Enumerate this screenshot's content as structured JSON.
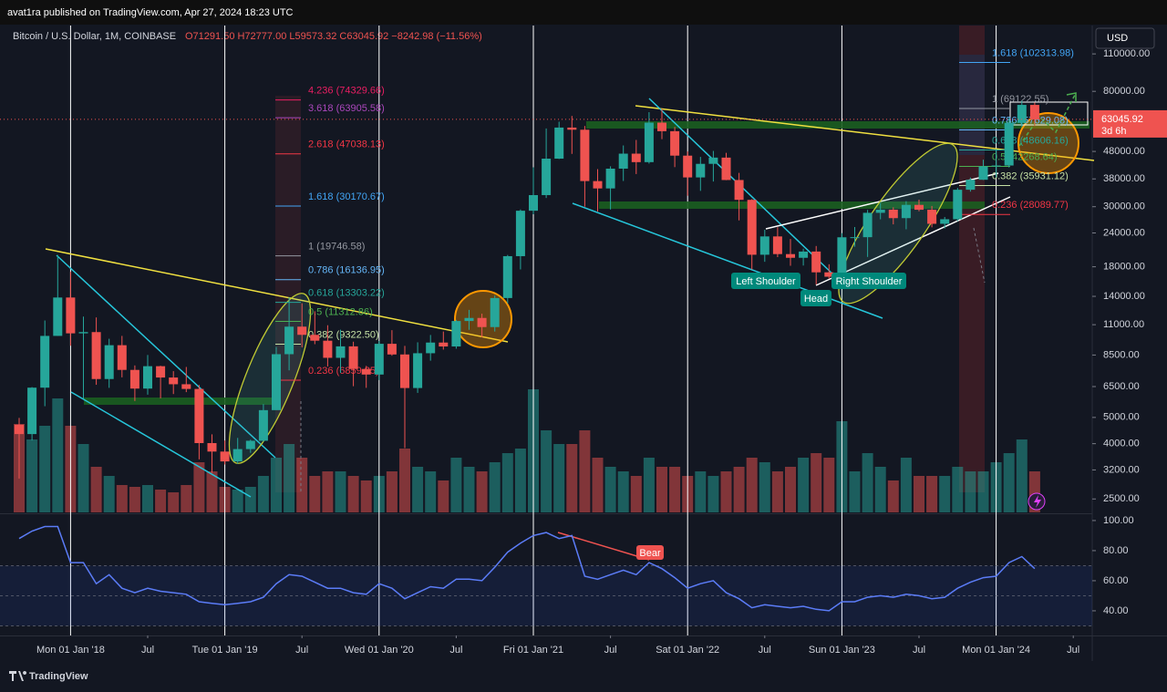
{
  "header": {
    "publisher": "avat1ra published on TradingView.com, Apr 27, 2024 18:23 UTC",
    "symbol": "Bitcoin / U.S. Dollar, 1M, COINBASE",
    "ohlc": "O71291.50 H72777.00 L59573.32 C63045.92 −8242.98 (−11.56%)",
    "currency": "USD"
  },
  "footer": "TradingView",
  "annotations": {
    "left_shoulder": "Left Shoulder",
    "head": "Head",
    "right_shoulder": "Right Shoulder",
    "bear": "Bear"
  },
  "chart_data": {
    "type": "candlestick",
    "log_scale": true,
    "up_color": "#26a69a",
    "down_color": "#ef5350",
    "x": [
      "2017-09",
      "2017-10",
      "2017-11",
      "2017-12",
      "2018-01",
      "2018-02",
      "2018-03",
      "2018-04",
      "2018-05",
      "2018-06",
      "2018-07",
      "2018-08",
      "2018-09",
      "2018-10",
      "2018-11",
      "2018-12",
      "2019-01",
      "2019-02",
      "2019-03",
      "2019-04",
      "2019-05",
      "2019-06",
      "2019-07",
      "2019-08",
      "2019-09",
      "2019-10",
      "2019-11",
      "2019-12",
      "2020-01",
      "2020-02",
      "2020-03",
      "2020-04",
      "2020-05",
      "2020-06",
      "2020-07",
      "2020-08",
      "2020-09",
      "2020-10",
      "2020-11",
      "2020-12",
      "2021-01",
      "2021-02",
      "2021-03",
      "2021-04",
      "2021-05",
      "2021-06",
      "2021-07",
      "2021-08",
      "2021-09",
      "2021-10",
      "2021-11",
      "2021-12",
      "2022-01",
      "2022-02",
      "2022-03",
      "2022-04",
      "2022-05",
      "2022-06",
      "2022-07",
      "2022-08",
      "2022-09",
      "2022-10",
      "2022-11",
      "2022-12",
      "2023-01",
      "2023-02",
      "2023-03",
      "2023-04",
      "2023-05",
      "2023-06",
      "2023-07",
      "2023-08",
      "2023-09",
      "2023-10",
      "2023-11",
      "2023-12",
      "2024-01",
      "2024-02",
      "2024-03",
      "2024-04"
    ],
    "open": [
      4700,
      4340,
      6440,
      10000,
      13860,
      10220,
      10330,
      6930,
      9240,
      7490,
      6390,
      7730,
      7020,
      6630,
      6370,
      4020,
      3740,
      3440,
      3820,
      4100,
      5320,
      8560,
      10820,
      10090,
      9600,
      8300,
      9150,
      7550,
      7200,
      9350,
      8540,
      6420,
      8630,
      9450,
      9140,
      11350,
      11650,
      10780,
      13800,
      19700,
      28990,
      33110,
      45140,
      58790,
      57720,
      37300,
      35040,
      41460,
      47100,
      43820,
      61320,
      57000,
      46310,
      38480,
      43190,
      45540,
      37640,
      31800,
      19940,
      23300,
      20050,
      19430,
      20490,
      17170,
      16540,
      23130,
      23150,
      28480,
      29250,
      27220,
      30470,
      29230,
      25940,
      26970,
      34650,
      37720,
      42280,
      42580,
      61170,
      71291.5
    ],
    "high": [
      4980,
      6470,
      11400,
      19890,
      17250,
      11790,
      11700,
      9760,
      10000,
      7780,
      8500,
      7760,
      7410,
      7680,
      6590,
      4330,
      4110,
      4200,
      4140,
      5600,
      9100,
      13880,
      13200,
      12330,
      10950,
      10540,
      9520,
      7750,
      9580,
      10500,
      9190,
      9470,
      10080,
      10380,
      11460,
      12480,
      12080,
      14100,
      19900,
      29300,
      41950,
      58350,
      61790,
      64900,
      59600,
      41300,
      42300,
      50500,
      52920,
      67020,
      69000,
      59100,
      47990,
      45820,
      48200,
      47450,
      40000,
      31990,
      24670,
      25200,
      22800,
      20990,
      21480,
      18390,
      23960,
      25250,
      29190,
      31000,
      29840,
      31430,
      31840,
      30190,
      27490,
      35200,
      38430,
      44730,
      48970,
      63970,
      73835,
      72777.0
    ],
    "low": [
      2975,
      4110,
      5500,
      10000,
      9200,
      5870,
      6600,
      6430,
      7030,
      5750,
      6070,
      5880,
      6100,
      6200,
      3500,
      3120,
      3350,
      3370,
      3700,
      4070,
      5330,
      7460,
      9070,
      9320,
      7710,
      7300,
      6520,
      6430,
      6870,
      8450,
      3850,
      6160,
      8100,
      8900,
      8970,
      10530,
      9880,
      10380,
      13200,
      17600,
      28130,
      32300,
      45000,
      47000,
      30000,
      28800,
      29280,
      37330,
      39600,
      43280,
      53260,
      42000,
      32930,
      34320,
      37160,
      37580,
      26700,
      17590,
      18780,
      19540,
      18150,
      18190,
      15480,
      16260,
      16500,
      21350,
      19570,
      26950,
      25820,
      24760,
      28860,
      25170,
      24920,
      26550,
      34100,
      37650,
      38500,
      41880,
      59000,
      59573.32
    ],
    "close": [
      4340,
      6440,
      10000,
      13860,
      10220,
      10330,
      6930,
      9240,
      7490,
      6390,
      7730,
      7020,
      6630,
      6370,
      4020,
      3740,
      3440,
      3820,
      4100,
      5320,
      8560,
      10820,
      10090,
      9600,
      8300,
      9150,
      7550,
      7200,
      9350,
      8540,
      6420,
      8630,
      9450,
      9140,
      11350,
      11650,
      10780,
      13800,
      19700,
      28990,
      33110,
      45140,
      58790,
      57720,
      37300,
      35040,
      41460,
      47100,
      43820,
      61320,
      57000,
      46310,
      38480,
      43190,
      45540,
      37640,
      31800,
      19940,
      23300,
      20050,
      19430,
      20490,
      17170,
      16540,
      23130,
      23150,
      28480,
      29250,
      27220,
      30470,
      29230,
      25940,
      26970,
      34650,
      37720,
      42280,
      42580,
      61170,
      71290,
      63045.92
    ],
    "volume": [
      97,
      80,
      95,
      125,
      95,
      75,
      50,
      40,
      30,
      28,
      30,
      25,
      22,
      30,
      55,
      45,
      28,
      25,
      28,
      40,
      60,
      75,
      60,
      40,
      45,
      45,
      40,
      35,
      40,
      45,
      70,
      50,
      45,
      35,
      60,
      50,
      45,
      55,
      65,
      70,
      135,
      90,
      75,
      75,
      90,
      60,
      50,
      45,
      40,
      60,
      50,
      50,
      40,
      45,
      40,
      45,
      50,
      60,
      55,
      45,
      50,
      60,
      65,
      60,
      100,
      45,
      65,
      50,
      35,
      60,
      40,
      40,
      40,
      50,
      45,
      45,
      55,
      65,
      80,
      45
    ],
    "ylim": [
      2230,
      140000
    ],
    "yticks": [
      {
        "value": 110000,
        "label": "110000.00"
      },
      {
        "value": 80000,
        "label": "80000.00"
      },
      {
        "value": 48000,
        "label": "48000.00"
      },
      {
        "value": 38000,
        "label": "38000.00"
      },
      {
        "value": 30000,
        "label": "30000.00"
      },
      {
        "value": 24000,
        "label": "24000.00"
      },
      {
        "value": 18000,
        "label": "18000.00"
      },
      {
        "value": 14000,
        "label": "14000.00"
      },
      {
        "value": 11000,
        "label": "11000.00"
      },
      {
        "value": 8500,
        "label": "8500.00"
      },
      {
        "value": 6500,
        "label": "6500.00"
      },
      {
        "value": 5000,
        "label": "5000.00"
      },
      {
        "value": 4000,
        "label": "4000.00"
      },
      {
        "value": 3200,
        "label": "3200.00"
      },
      {
        "value": 2500,
        "label": "2500.00"
      }
    ],
    "xticks": [
      {
        "value": "2018-01",
        "label": "Mon 01 Jan '18"
      },
      {
        "value": "2019-01",
        "label": "Tue 01 Jan '19"
      },
      {
        "value": "2020-01",
        "label": "Wed 01 Jan '20"
      },
      {
        "value": "2021-01",
        "label": "Fri 01 Jan '21"
      },
      {
        "value": "2022-01",
        "label": "Sat 01 Jan '22"
      },
      {
        "value": "2023-01",
        "label": "Sun 01 Jan '23"
      },
      {
        "value": "2024-01",
        "label": "Mon 01 Jan '24"
      }
    ],
    "xticks_minor": [
      {
        "value": "2018-07",
        "label": "Jul"
      },
      {
        "value": "2019-07",
        "label": "Jul"
      },
      {
        "value": "2020-07",
        "label": "Jul"
      },
      {
        "value": "2021-07",
        "label": "Jul"
      },
      {
        "value": "2022-07",
        "label": "Jul"
      },
      {
        "value": "2023-07",
        "label": "Jul"
      },
      {
        "value": "2024-07",
        "label": "Jul"
      }
    ],
    "last_price": 63045.92,
    "countdown": "3d 6h",
    "fib_left": [
      {
        "label": "4.236 (74329.66)",
        "value": 74329.66,
        "color": "#e91e63"
      },
      {
        "label": "3.618 (63905.58)",
        "value": 63905.58,
        "color": "#ab47bc"
      },
      {
        "label": "2.618 (47038.13)",
        "value": 47038.13,
        "color": "#f23645"
      },
      {
        "label": "1.618 (30170.67)",
        "value": 30170.67,
        "color": "#42a5f5"
      },
      {
        "label": "1 (19746.58)",
        "value": 19746.58,
        "color": "#9598a1"
      },
      {
        "label": "0.786 (16136.95)",
        "value": 16136.95,
        "color": "#64b5f6"
      },
      {
        "label": "0.618 (13303.22)",
        "value": 13303.22,
        "color": "#26a69a"
      },
      {
        "label": "0.5 (11312.86)",
        "value": 11312.86,
        "color": "#4caf50"
      },
      {
        "label": "0.382 (9322.50)",
        "value": 9322.5,
        "color": "#c5e1a5"
      },
      {
        "label": "0.236 (6859.85)",
        "value": 6859.85,
        "color": "#f23645"
      }
    ],
    "fib_right": [
      {
        "label": "1.618 (102313.98)",
        "value": 102313.98,
        "color": "#42a5f5"
      },
      {
        "label": "1 (69122.55)",
        "value": 69122.55,
        "color": "#9598a1"
      },
      {
        "label": "0.786 (57629.08)",
        "value": 57629.08,
        "color": "#64b5f6"
      },
      {
        "label": "0.618 (48606.16)",
        "value": 48606.16,
        "color": "#26a69a"
      },
      {
        "label": "0.5 (42268.64)",
        "value": 42268.64,
        "color": "#4caf50"
      },
      {
        "label": "0.382 (35931.12)",
        "value": 35931.12,
        "color": "#c5e1a5"
      },
      {
        "label": "0.236 (28089.77)",
        "value": 28089.77,
        "color": "#f23645"
      }
    ],
    "rsi": {
      "color": "#5b7cf7",
      "ylim": [
        23.6,
        103.6
      ],
      "upper_band": 70,
      "middle_band": 50,
      "lower_band": 30,
      "yticks": [
        {
          "value": 100,
          "label": "100.00"
        },
        {
          "value": 80,
          "label": "80.00"
        },
        {
          "value": 60,
          "label": "60.00"
        },
        {
          "value": 40,
          "label": "40.00"
        }
      ],
      "values": [
        88,
        93,
        96,
        96,
        72,
        72,
        58,
        64,
        55,
        52,
        55,
        53,
        52,
        51,
        46,
        45,
        44,
        45,
        46,
        49,
        58,
        64,
        63,
        59,
        55,
        55,
        52,
        51,
        58,
        55,
        48,
        52,
        56,
        55,
        61,
        61,
        60,
        69,
        79,
        85,
        90,
        92,
        88,
        90,
        63,
        61,
        64,
        67,
        64,
        72,
        68,
        62,
        55,
        58,
        60,
        52,
        48,
        42,
        44,
        43,
        42,
        43,
        41,
        40,
        46,
        46,
        49,
        50,
        49,
        51,
        50,
        48,
        49,
        55,
        59,
        62,
        63,
        72,
        76,
        68
      ]
    }
  }
}
